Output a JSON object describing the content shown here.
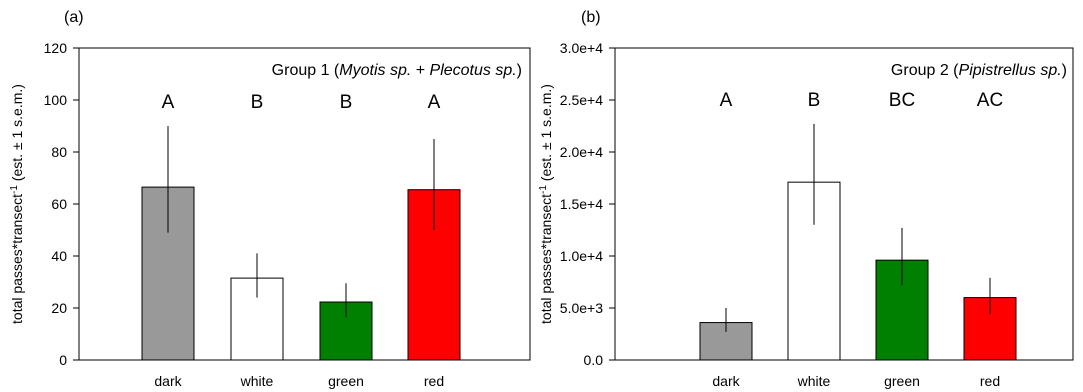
{
  "chart_data": [
    {
      "type": "bar",
      "panel_label": "(a)",
      "title_prefix": "Group 1 (",
      "title_species_1": "Myotis sp.",
      "title_join": " + ",
      "title_species_2": "Plecotus sp.",
      "title_suffix": ")",
      "ylabel_main": "total passes*transect",
      "ylabel_sup": "-1",
      "ylabel_tail": " (est. ± 1 s.e.m.)",
      "categories": [
        "dark",
        "white",
        "green",
        "red"
      ],
      "values": [
        66.5,
        31.5,
        22.3,
        65.5
      ],
      "error_low": [
        49,
        24,
        16.5,
        50
      ],
      "error_high": [
        90,
        41,
        29.5,
        85
      ],
      "significance_letters": [
        "A",
        "B",
        "B",
        "A"
      ],
      "colors": [
        "#999999",
        "#ffffff",
        "#008000",
        "#ff0000"
      ],
      "ylim": [
        0,
        120
      ],
      "yticks": [
        0,
        20,
        40,
        60,
        80,
        100,
        120
      ],
      "ytick_labels": [
        "0",
        "20",
        "40",
        "60",
        "80",
        "100",
        "120"
      ]
    },
    {
      "type": "bar",
      "panel_label": "(b)",
      "title_prefix": "Group 2 (",
      "title_species_1": "Pipistrellus sp.",
      "title_join": "",
      "title_species_2": "",
      "title_suffix": ")",
      "ylabel_main": "total passes*transect",
      "ylabel_sup": "-1",
      "ylabel_tail": " (est. ± 1 s.e.m.)",
      "categories": [
        "dark",
        "white",
        "green",
        "red"
      ],
      "values": [
        3600,
        17100,
        9600,
        6000
      ],
      "error_low": [
        2700,
        13000,
        7200,
        4400
      ],
      "error_high": [
        5000,
        22700,
        12700,
        7900
      ],
      "significance_letters": [
        "A",
        "B",
        "BC",
        "AC"
      ],
      "colors": [
        "#999999",
        "#ffffff",
        "#008000",
        "#ff0000"
      ],
      "ylim": [
        0,
        30000
      ],
      "yticks": [
        0,
        5000,
        10000,
        15000,
        20000,
        25000,
        30000
      ],
      "ytick_labels": [
        "0.0",
        "5.0e+3",
        "1.0e+4",
        "1.5e+4",
        "2.0e+4",
        "2.5e+4",
        "3.0e+4"
      ]
    }
  ]
}
